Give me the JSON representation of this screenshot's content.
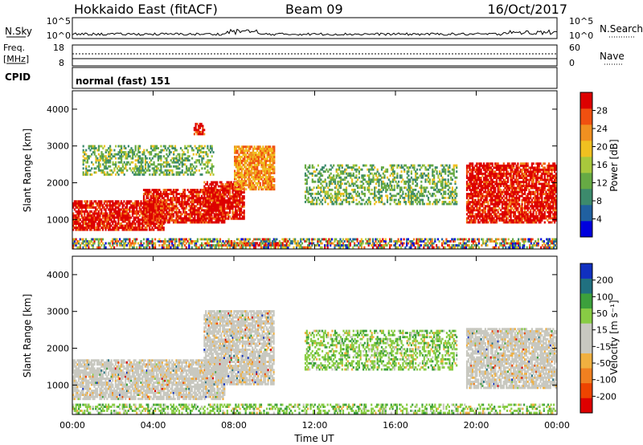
{
  "header": {
    "title": "Hokkaido East (fitACF)",
    "beam": "Beam 09",
    "date": "16/Oct/2017"
  },
  "top_strips": {
    "nsky": {
      "label": "N.Sky",
      "tick_hi": "10^5",
      "tick_lo": "10^0",
      "right_label": "N.Search",
      "right_tick_hi": "10^5",
      "right_tick_lo": "10^0"
    },
    "freq": {
      "label_line1": "Freq.",
      "label_line2": "[MHz]",
      "tick_hi": "18",
      "tick_lo": "8",
      "right_label": "Nave",
      "right_tick_hi": "60",
      "right_tick_lo": "0"
    },
    "cpid": {
      "label": "CPID",
      "text": "normal (fast) 151"
    }
  },
  "chart_data": [
    {
      "type": "heatmap",
      "name": "power",
      "ylabel": "Slant Range [km]",
      "ylim": [
        200,
        4500
      ],
      "yticks": [
        1000,
        2000,
        3000,
        4000
      ],
      "xlim": [
        0,
        24
      ],
      "colorbar": {
        "label": "Power [dB]",
        "ticks": [
          "28",
          "24",
          "20",
          "16",
          "12",
          "8",
          "4"
        ],
        "colors": [
          "#0000dd",
          "#2060a0",
          "#3c8a6c",
          "#66aa44",
          "#a8c83c",
          "#f0c020",
          "#f09020",
          "#f05010",
          "#dd0000"
        ]
      },
      "echo_regions": [
        {
          "t0": 0.0,
          "t1": 4.5,
          "r0": 700,
          "r1": 1500,
          "level": "high"
        },
        {
          "t0": 3.5,
          "t1": 7.5,
          "r0": 900,
          "r1": 1800,
          "level": "high"
        },
        {
          "t0": 6.5,
          "t1": 8.5,
          "r0": 1000,
          "r1": 2000,
          "level": "high"
        },
        {
          "t0": 8.0,
          "t1": 10.0,
          "r0": 1800,
          "r1": 3000,
          "level": "mid"
        },
        {
          "t0": 0.5,
          "t1": 7.0,
          "r0": 2200,
          "r1": 3000,
          "level": "low"
        },
        {
          "t0": 6.0,
          "t1": 6.5,
          "r0": 3300,
          "r1": 3600,
          "level": "high"
        },
        {
          "t0": 11.5,
          "t1": 19.0,
          "r0": 1400,
          "r1": 2500,
          "level": "low"
        },
        {
          "t0": 19.5,
          "t1": 24.0,
          "r0": 900,
          "r1": 2500,
          "level": "high"
        },
        {
          "t0": 7.5,
          "t1": 10.5,
          "r0": 280,
          "r1": 380,
          "level": "high"
        },
        {
          "t0": 0.0,
          "t1": 24.0,
          "r0": 220,
          "r1": 480,
          "level": "mixed"
        }
      ]
    },
    {
      "type": "heatmap",
      "name": "velocity",
      "ylabel": "Slant Range [km]",
      "xlabel": "Time UT",
      "ylim": [
        200,
        4500
      ],
      "yticks": [
        1000,
        2000,
        3000,
        4000
      ],
      "xlim": [
        0,
        24
      ],
      "xticks": [
        "00:00",
        "04:00",
        "08:00",
        "12:00",
        "16:00",
        "20:00",
        "00:00"
      ],
      "colorbar": {
        "label": "Velocity [m s⁻¹]",
        "ticks": [
          "200",
          "100",
          "50",
          "15",
          "-15",
          "-50",
          "-100",
          "-200"
        ],
        "colors": [
          "#dd0000",
          "#ee4400",
          "#f08020",
          "#f0b040",
          "#c8c8c0",
          "#c8c8c0",
          "#88cc44",
          "#3ca03c",
          "#207080",
          "#1030c0"
        ]
      },
      "echo_regions": [
        {
          "t0": 0.0,
          "t1": 7.5,
          "r0": 600,
          "r1": 1700,
          "level": "ground"
        },
        {
          "t0": 6.5,
          "t1": 10.0,
          "r0": 1000,
          "r1": 3000,
          "level": "ground"
        },
        {
          "t0": 11.5,
          "t1": 19.0,
          "r0": 1400,
          "r1": 2500,
          "level": "green"
        },
        {
          "t0": 19.5,
          "t1": 24.0,
          "r0": 900,
          "r1": 2500,
          "level": "ground"
        },
        {
          "t0": 0.0,
          "t1": 24.0,
          "r0": 220,
          "r1": 480,
          "level": "green"
        }
      ]
    }
  ]
}
